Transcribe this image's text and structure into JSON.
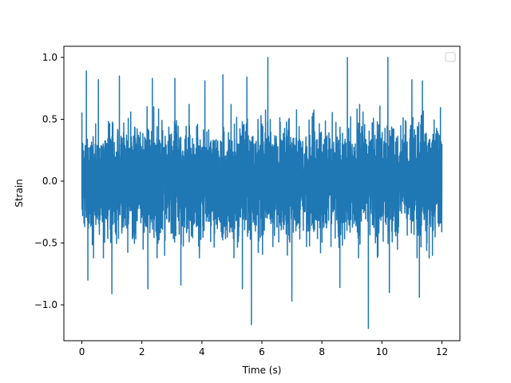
{
  "chart_data": {
    "type": "line",
    "title": "",
    "xlabel": "Time (s)",
    "ylabel": "Strain",
    "xlim": [
      -0.6,
      12.6
    ],
    "ylim": [
      -1.29,
      1.09
    ],
    "x_ticks": [
      0,
      2,
      4,
      6,
      8,
      10,
      12
    ],
    "x_tick_labels": [
      "0",
      "2",
      "4",
      "6",
      "8",
      "10",
      "12"
    ],
    "y_ticks": [
      -1.0,
      -0.5,
      0.0,
      0.5,
      1.0
    ],
    "y_tick_labels": [
      "−1.0",
      "−0.5",
      "0.0",
      "0.5",
      "1.0"
    ],
    "grid": false,
    "legend": {
      "placement": "top-right",
      "entries": []
    },
    "series": [
      {
        "color": "#1f77b4",
        "description_of_shape": "dense noise-like signal",
        "x_range": [
          0,
          12
        ],
        "approx_envelope": {
          "upper_typical": 0.5,
          "lower_typical": -0.5,
          "max": 1.0,
          "min": -1.19
        },
        "notable_peaks": [
          {
            "x": 0.15,
            "y": 0.89
          },
          {
            "x": 0.55,
            "y": 0.82
          },
          {
            "x": 1.25,
            "y": 0.85
          },
          {
            "x": 2.2,
            "y": 0.84
          },
          {
            "x": 2.35,
            "y": 0.83
          },
          {
            "x": 3.1,
            "y": 0.83
          },
          {
            "x": 4.1,
            "y": 0.81
          },
          {
            "x": 4.7,
            "y": 0.86
          },
          {
            "x": 5.5,
            "y": 0.84
          },
          {
            "x": 6.2,
            "y": 1.0
          },
          {
            "x": 8.85,
            "y": 1.0
          },
          {
            "x": 10.2,
            "y": 1.0
          },
          {
            "x": 11.0,
            "y": 0.82
          },
          {
            "x": 11.35,
            "y": 0.81
          }
        ],
        "notable_troughs": [
          {
            "x": 0.2,
            "y": -0.8
          },
          {
            "x": 1.0,
            "y": -0.91
          },
          {
            "x": 2.2,
            "y": -0.87
          },
          {
            "x": 3.3,
            "y": -0.84
          },
          {
            "x": 5.35,
            "y": -0.87
          },
          {
            "x": 5.65,
            "y": -1.16
          },
          {
            "x": 7.0,
            "y": -0.97
          },
          {
            "x": 8.6,
            "y": -0.86
          },
          {
            "x": 9.55,
            "y": -1.19
          },
          {
            "x": 10.25,
            "y": -0.9
          },
          {
            "x": 11.25,
            "y": -0.94
          }
        ]
      }
    ]
  }
}
